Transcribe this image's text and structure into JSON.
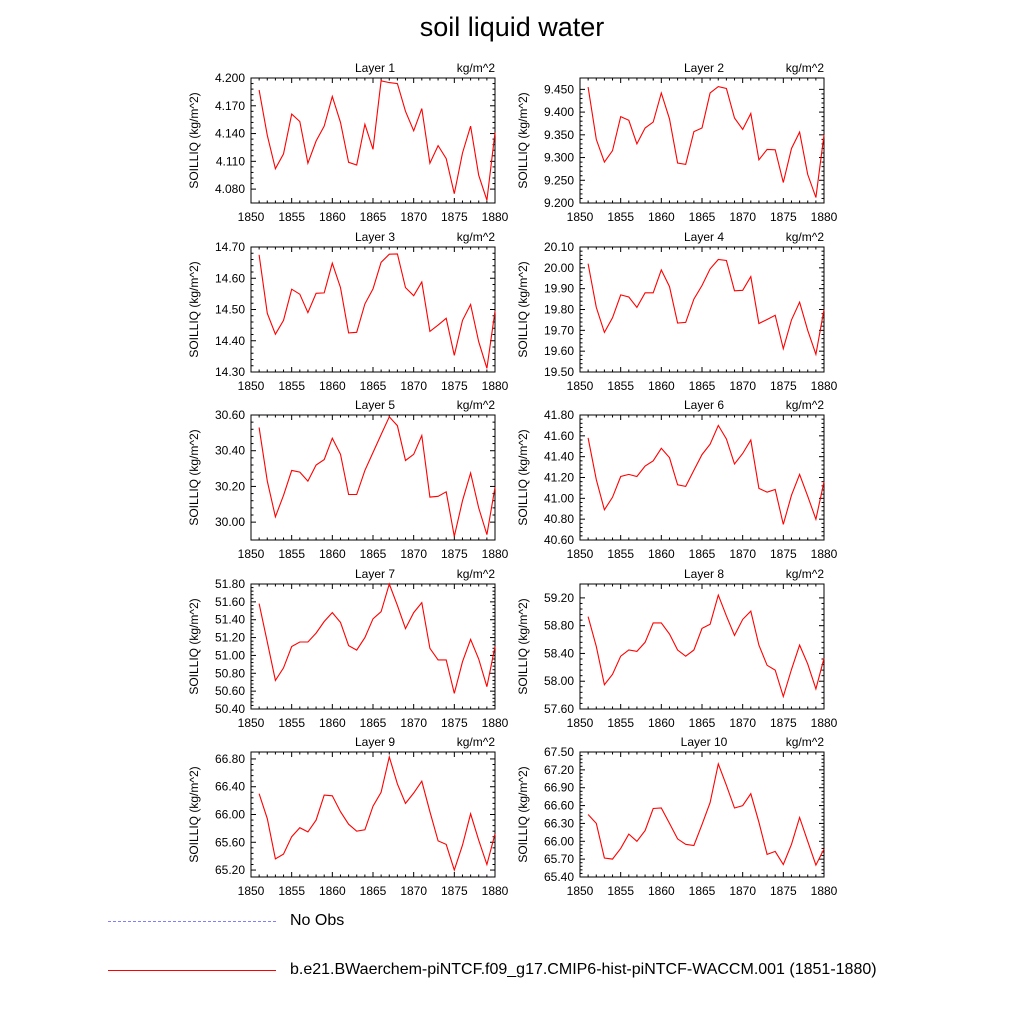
{
  "title": "soil liquid water",
  "legend": {
    "obs_label": "No Obs",
    "obs_color": "#8080ff",
    "model_label": "b.e21.BWaerchem-piNTCF.f09_g17.CMIP6-hist-piNTCF-WACCM.001 (1851-1880)",
    "model_color": "#ff0000"
  },
  "chart_data": [
    {
      "type": "line",
      "title": "Layer 1",
      "units": "kg/m^2",
      "ylabel": "SOILLIQ  (kg/m^2)",
      "xlim": [
        1850,
        1880
      ],
      "ylim": [
        4.065,
        4.2
      ],
      "xticks": [
        1850,
        1855,
        1860,
        1865,
        1870,
        1875,
        1880
      ],
      "yticks": [
        "4.080",
        "4.110",
        "4.140",
        "4.170",
        "4.200"
      ],
      "x": [
        1851,
        1852,
        1853,
        1854,
        1855,
        1856,
        1857,
        1858,
        1859,
        1860,
        1861,
        1862,
        1863,
        1864,
        1865,
        1866,
        1867,
        1868,
        1869,
        1870,
        1871,
        1872,
        1873,
        1874,
        1875,
        1876,
        1877,
        1878,
        1879,
        1880
      ],
      "series": [
        {
          "values": [
            4.187,
            4.138,
            4.102,
            4.118,
            4.161,
            4.153,
            4.108,
            4.132,
            4.148,
            4.18,
            4.152,
            4.109,
            4.106,
            4.15,
            4.123,
            4.197,
            4.195,
            4.194,
            4.164,
            4.143,
            4.167,
            4.108,
            4.127,
            4.113,
            4.075,
            4.119,
            4.148,
            4.095,
            4.068,
            4.141
          ]
        }
      ]
    },
    {
      "type": "line",
      "title": "Layer 2",
      "units": "kg/m^2",
      "ylabel": "SOILLIQ  (kg/m^2)",
      "xlim": [
        1850,
        1880
      ],
      "ylim": [
        9.2,
        9.475
      ],
      "xticks": [
        1850,
        1855,
        1860,
        1865,
        1870,
        1875,
        1880
      ],
      "yticks": [
        "9.200",
        "9.250",
        "9.300",
        "9.350",
        "9.400",
        "9.450"
      ],
      "x": [
        1851,
        1852,
        1853,
        1854,
        1855,
        1856,
        1857,
        1858,
        1859,
        1860,
        1861,
        1862,
        1863,
        1864,
        1865,
        1866,
        1867,
        1868,
        1869,
        1870,
        1871,
        1872,
        1873,
        1874,
        1875,
        1876,
        1877,
        1878,
        1879,
        1880
      ],
      "series": [
        {
          "values": [
            9.455,
            9.34,
            9.29,
            9.315,
            9.39,
            9.382,
            9.33,
            9.365,
            9.378,
            9.442,
            9.385,
            9.288,
            9.285,
            9.357,
            9.365,
            9.442,
            9.456,
            9.452,
            9.387,
            9.362,
            9.397,
            9.295,
            9.318,
            9.317,
            9.245,
            9.32,
            9.356,
            9.263,
            9.212,
            9.35
          ]
        }
      ]
    },
    {
      "type": "line",
      "title": "Layer 3",
      "units": "kg/m^2",
      "ylabel": "SOILLIQ  (kg/m^2)",
      "xlim": [
        1850,
        1880
      ],
      "ylim": [
        14.3,
        14.7
      ],
      "xticks": [
        1850,
        1855,
        1860,
        1865,
        1870,
        1875,
        1880
      ],
      "yticks": [
        "14.30",
        "14.40",
        "14.50",
        "14.60",
        "14.70"
      ],
      "x": [
        1851,
        1852,
        1853,
        1854,
        1855,
        1856,
        1857,
        1858,
        1859,
        1860,
        1861,
        1862,
        1863,
        1864,
        1865,
        1866,
        1867,
        1868,
        1869,
        1870,
        1871,
        1872,
        1873,
        1874,
        1875,
        1876,
        1877,
        1878,
        1879,
        1880
      ],
      "series": [
        {
          "values": [
            14.675,
            14.488,
            14.421,
            14.465,
            14.565,
            14.549,
            14.49,
            14.552,
            14.553,
            14.648,
            14.57,
            14.425,
            14.427,
            14.518,
            14.566,
            14.651,
            14.677,
            14.678,
            14.57,
            14.544,
            14.588,
            14.43,
            14.45,
            14.472,
            14.353,
            14.465,
            14.516,
            14.397,
            14.312,
            14.495
          ]
        }
      ]
    },
    {
      "type": "line",
      "title": "Layer 4",
      "units": "kg/m^2",
      "ylabel": "SOILLIQ  (kg/m^2)",
      "xlim": [
        1850,
        1880
      ],
      "ylim": [
        19.5,
        20.1
      ],
      "xticks": [
        1850,
        1855,
        1860,
        1865,
        1870,
        1875,
        1880
      ],
      "yticks": [
        "19.50",
        "19.60",
        "19.70",
        "19.80",
        "19.90",
        "20.00",
        "20.10"
      ],
      "x": [
        1851,
        1852,
        1853,
        1854,
        1855,
        1856,
        1857,
        1858,
        1859,
        1860,
        1861,
        1862,
        1863,
        1864,
        1865,
        1866,
        1867,
        1868,
        1869,
        1870,
        1871,
        1872,
        1873,
        1874,
        1875,
        1876,
        1877,
        1878,
        1879,
        1880
      ],
      "series": [
        {
          "values": [
            20.02,
            19.81,
            19.69,
            19.76,
            19.87,
            19.86,
            19.81,
            19.88,
            19.88,
            19.99,
            19.91,
            19.735,
            19.738,
            19.85,
            19.915,
            19.995,
            20.04,
            20.035,
            19.89,
            19.892,
            19.958,
            19.733,
            19.752,
            19.772,
            19.612,
            19.75,
            19.835,
            19.7,
            19.585,
            19.8
          ]
        }
      ]
    },
    {
      "type": "line",
      "title": "Layer 5",
      "units": "kg/m^2",
      "ylabel": "SOILLIQ  (kg/m^2)",
      "xlim": [
        1850,
        1880
      ],
      "ylim": [
        29.9,
        30.6
      ],
      "xticks": [
        1850,
        1855,
        1860,
        1865,
        1870,
        1875,
        1880
      ],
      "yticks": [
        "30.00",
        "30.20",
        "30.40",
        "30.60"
      ],
      "x": [
        1851,
        1852,
        1853,
        1854,
        1855,
        1856,
        1857,
        1858,
        1859,
        1860,
        1861,
        1862,
        1863,
        1864,
        1865,
        1866,
        1867,
        1868,
        1869,
        1870,
        1871,
        1872,
        1873,
        1874,
        1875,
        1876,
        1877,
        1878,
        1879,
        1880
      ],
      "series": [
        {
          "values": [
            30.53,
            30.23,
            30.03,
            30.15,
            30.29,
            30.28,
            30.23,
            30.32,
            30.35,
            30.47,
            30.38,
            30.155,
            30.155,
            30.29,
            30.39,
            30.49,
            30.59,
            30.54,
            30.345,
            30.38,
            30.485,
            30.14,
            30.145,
            30.17,
            29.92,
            30.12,
            30.275,
            30.08,
            29.93,
            30.195
          ]
        }
      ]
    },
    {
      "type": "line",
      "title": "Layer 6",
      "units": "kg/m^2",
      "ylabel": "SOILLIQ  (kg/m^2)",
      "xlim": [
        1850,
        1880
      ],
      "ylim": [
        40.6,
        41.8
      ],
      "xticks": [
        1850,
        1855,
        1860,
        1865,
        1870,
        1875,
        1880
      ],
      "yticks": [
        "40.60",
        "40.80",
        "41.00",
        "41.20",
        "41.40",
        "41.60",
        "41.80"
      ],
      "x": [
        1851,
        1852,
        1853,
        1854,
        1855,
        1856,
        1857,
        1858,
        1859,
        1860,
        1861,
        1862,
        1863,
        1864,
        1865,
        1866,
        1867,
        1868,
        1869,
        1870,
        1871,
        1872,
        1873,
        1874,
        1875,
        1876,
        1877,
        1878,
        1879,
        1880
      ],
      "series": [
        {
          "values": [
            41.58,
            41.18,
            40.89,
            41.01,
            41.21,
            41.23,
            41.21,
            41.31,
            41.36,
            41.48,
            41.39,
            41.13,
            41.115,
            41.27,
            41.42,
            41.52,
            41.7,
            41.57,
            41.33,
            41.43,
            41.56,
            41.095,
            41.06,
            41.085,
            40.75,
            41.03,
            41.23,
            41.02,
            40.8,
            41.16
          ]
        }
      ]
    },
    {
      "type": "line",
      "title": "Layer 7",
      "units": "kg/m^2",
      "ylabel": "SOILLIQ  (kg/m^2)",
      "xlim": [
        1850,
        1880
      ],
      "ylim": [
        50.4,
        51.8
      ],
      "xticks": [
        1850,
        1855,
        1860,
        1865,
        1870,
        1875,
        1880
      ],
      "yticks": [
        "50.40",
        "50.60",
        "50.80",
        "51.00",
        "51.20",
        "51.40",
        "51.60",
        "51.80"
      ],
      "x": [
        1851,
        1852,
        1853,
        1854,
        1855,
        1856,
        1857,
        1858,
        1859,
        1860,
        1861,
        1862,
        1863,
        1864,
        1865,
        1866,
        1867,
        1868,
        1869,
        1870,
        1871,
        1872,
        1873,
        1874,
        1875,
        1876,
        1877,
        1878,
        1879,
        1880
      ],
      "series": [
        {
          "values": [
            51.58,
            51.15,
            50.72,
            50.86,
            51.1,
            51.15,
            51.15,
            51.25,
            51.38,
            51.48,
            51.37,
            51.11,
            51.06,
            51.2,
            51.41,
            51.49,
            51.8,
            51.56,
            51.3,
            51.48,
            51.59,
            51.08,
            50.95,
            50.95,
            50.575,
            50.93,
            51.18,
            50.96,
            50.65,
            51.1
          ]
        }
      ]
    },
    {
      "type": "line",
      "title": "Layer 8",
      "units": "kg/m^2",
      "ylabel": "SOILLIQ  (kg/m^2)",
      "xlim": [
        1850,
        1880
      ],
      "ylim": [
        57.6,
        59.4
      ],
      "xticks": [
        1850,
        1855,
        1860,
        1865,
        1870,
        1875,
        1880
      ],
      "yticks": [
        "57.60",
        "58.00",
        "58.40",
        "58.80",
        "59.20"
      ],
      "x": [
        1851,
        1852,
        1853,
        1854,
        1855,
        1856,
        1857,
        1858,
        1859,
        1860,
        1861,
        1862,
        1863,
        1864,
        1865,
        1866,
        1867,
        1868,
        1869,
        1870,
        1871,
        1872,
        1873,
        1874,
        1875,
        1876,
        1877,
        1878,
        1879,
        1880
      ],
      "series": [
        {
          "values": [
            58.93,
            58.5,
            57.95,
            58.1,
            58.36,
            58.45,
            58.43,
            58.56,
            58.84,
            58.84,
            58.68,
            58.45,
            58.36,
            58.45,
            58.76,
            58.82,
            59.24,
            58.94,
            58.66,
            58.89,
            59.01,
            58.52,
            58.23,
            58.16,
            57.78,
            58.17,
            58.52,
            58.25,
            57.89,
            58.33
          ]
        }
      ]
    },
    {
      "type": "line",
      "title": "Layer 9",
      "units": "kg/m^2",
      "ylabel": "SOILLIQ  (kg/m^2)",
      "xlim": [
        1850,
        1880
      ],
      "ylim": [
        65.1,
        66.9
      ],
      "xticks": [
        1850,
        1855,
        1860,
        1865,
        1870,
        1875,
        1880
      ],
      "yticks": [
        "65.20",
        "65.60",
        "66.00",
        "66.40",
        "66.80"
      ],
      "x": [
        1851,
        1852,
        1853,
        1854,
        1855,
        1856,
        1857,
        1858,
        1859,
        1860,
        1861,
        1862,
        1863,
        1864,
        1865,
        1866,
        1867,
        1868,
        1869,
        1870,
        1871,
        1872,
        1873,
        1874,
        1875,
        1876,
        1877,
        1878,
        1879,
        1880
      ],
      "series": [
        {
          "values": [
            66.3,
            65.94,
            65.36,
            65.43,
            65.68,
            65.81,
            65.75,
            65.92,
            66.28,
            66.27,
            66.04,
            65.86,
            65.76,
            65.78,
            66.12,
            66.32,
            66.83,
            66.44,
            66.16,
            66.31,
            66.48,
            66.04,
            65.62,
            65.57,
            65.2,
            65.56,
            66.01,
            65.63,
            65.28,
            65.72
          ]
        }
      ]
    },
    {
      "type": "line",
      "title": "Layer 10",
      "units": "kg/m^2",
      "ylabel": "SOILLIQ  (kg/m^2)",
      "xlim": [
        1850,
        1880
      ],
      "ylim": [
        65.4,
        67.5
      ],
      "xticks": [
        1850,
        1855,
        1860,
        1865,
        1870,
        1875,
        1880
      ],
      "yticks": [
        "65.40",
        "65.70",
        "66.00",
        "66.30",
        "66.60",
        "66.90",
        "67.20",
        "67.50"
      ],
      "x": [
        1851,
        1852,
        1853,
        1854,
        1855,
        1856,
        1857,
        1858,
        1859,
        1860,
        1861,
        1862,
        1863,
        1864,
        1865,
        1866,
        1867,
        1868,
        1869,
        1870,
        1871,
        1872,
        1873,
        1874,
        1875,
        1876,
        1877,
        1878,
        1879,
        1880
      ],
      "series": [
        {
          "values": [
            66.45,
            66.3,
            65.72,
            65.7,
            65.88,
            66.12,
            66.0,
            66.18,
            66.55,
            66.56,
            66.3,
            66.04,
            65.95,
            65.93,
            66.28,
            66.65,
            67.3,
            66.94,
            66.56,
            66.6,
            66.8,
            66.32,
            65.78,
            65.83,
            65.61,
            65.95,
            66.4,
            66.0,
            65.6,
            65.87
          ]
        }
      ]
    }
  ]
}
